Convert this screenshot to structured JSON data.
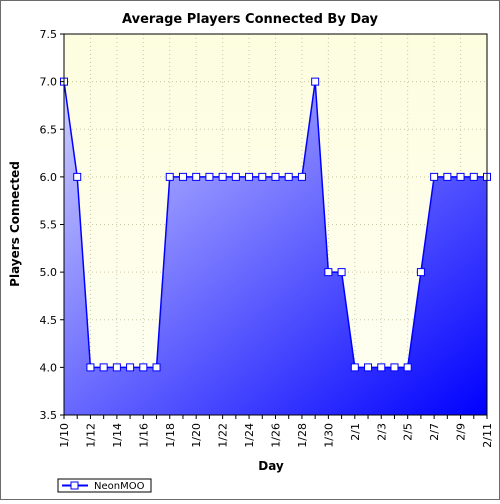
{
  "chart_data": {
    "type": "area",
    "title": "Average Players Connected By Day",
    "xlabel": "Day",
    "ylabel": "Players Connected",
    "ylim": [
      3.5,
      7.5
    ],
    "yticks": [
      "3.5",
      "4.0",
      "4.5",
      "5.0",
      "5.5",
      "6.0",
      "6.5",
      "7.0",
      "7.5"
    ],
    "x": [
      "1/10",
      "1/11",
      "1/12",
      "1/13",
      "1/14",
      "1/15",
      "1/16",
      "1/17",
      "1/18",
      "1/19",
      "1/20",
      "1/21",
      "1/22",
      "1/23",
      "1/24",
      "1/25",
      "1/26",
      "1/27",
      "1/28",
      "1/29",
      "1/30",
      "1/31",
      "2/1",
      "2/2",
      "2/3",
      "2/4",
      "2/5",
      "2/6",
      "2/7",
      "2/8",
      "2/9",
      "2/10",
      "2/11"
    ],
    "xtick_labels": [
      "1/10",
      "1/12",
      "1/14",
      "1/16",
      "1/18",
      "1/20",
      "1/22",
      "1/24",
      "1/26",
      "1/28",
      "1/30",
      "2/1",
      "2/3",
      "2/5",
      "2/7",
      "2/9",
      "2/11"
    ],
    "series": [
      {
        "name": "NeonMOO",
        "values": [
          7.0,
          6.0,
          4.0,
          4.0,
          4.0,
          4.0,
          4.0,
          4.0,
          6.0,
          6.0,
          6.0,
          6.0,
          6.0,
          6.0,
          6.0,
          6.0,
          6.0,
          6.0,
          6.0,
          7.0,
          5.0,
          5.0,
          4.0,
          4.0,
          4.0,
          4.0,
          4.0,
          5.0,
          6.0,
          6.0,
          6.0,
          6.0,
          6.0
        ]
      }
    ],
    "grid": true,
    "legend": "bottom-left",
    "colors": {
      "plot_bg_top": "#fdfde0",
      "plot_bg_bottom": "#fffff2",
      "area_light": "#d0d0ff",
      "area_dark": "#0000ff",
      "line": "#0000ff",
      "marker_fill": "#ffffff",
      "grid": "#c8c8a8"
    }
  }
}
